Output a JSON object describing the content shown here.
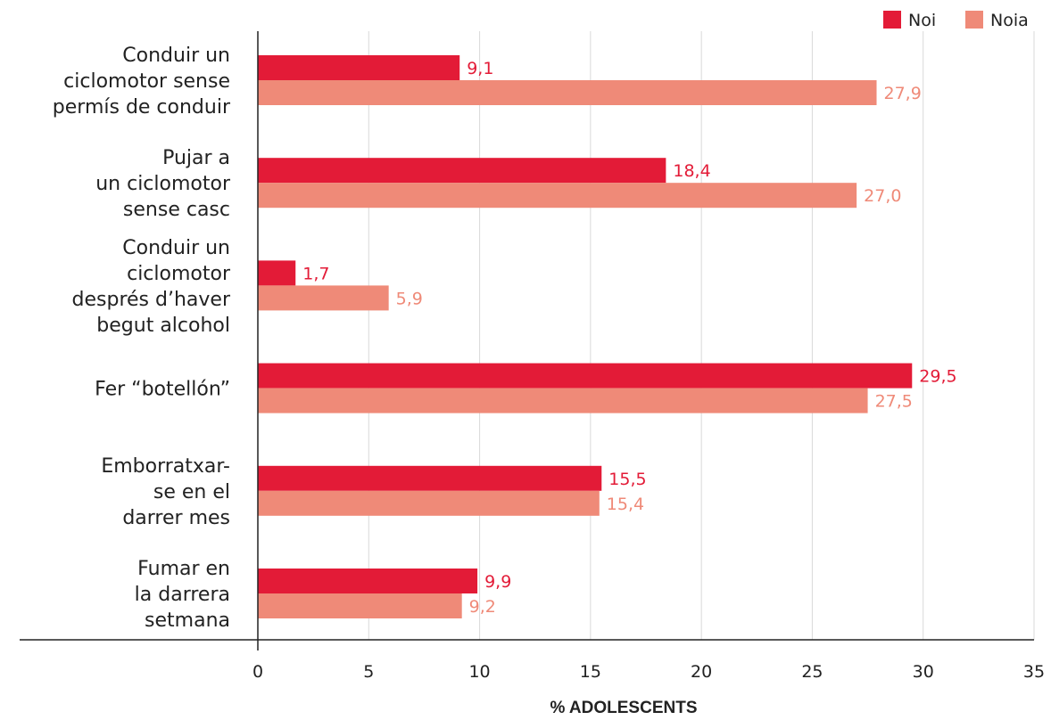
{
  "chart_data": {
    "type": "bar",
    "orientation": "horizontal",
    "categories": [
      [
        "Conduir un",
        "ciclomotor sense",
        "permís de conduir"
      ],
      [
        "Pujar a",
        "un ciclomotor",
        "sense casc"
      ],
      [
        "Conduir un",
        "ciclomotor",
        "després d’haver",
        "begut alcohol"
      ],
      [
        "Fer “botellón”"
      ],
      [
        "Emborratxar-",
        "se en el",
        "darrer mes"
      ],
      [
        "Fumar en",
        "la darrera",
        "setmana"
      ]
    ],
    "series": [
      {
        "name": "Noi",
        "color": "#e31b37",
        "values": [
          9.1,
          18.4,
          1.7,
          29.5,
          15.5,
          9.9
        ],
        "labels": [
          "9,1",
          "18,4",
          "1,7",
          "29,5",
          "15,5",
          "9,9"
        ]
      },
      {
        "name": "Noia",
        "color": "#ef8a78",
        "values": [
          27.9,
          27.0,
          5.9,
          27.5,
          15.4,
          9.2
        ],
        "labels": [
          "27,9",
          "27,0",
          "5,9",
          "27,5",
          "15,4",
          "9,2"
        ]
      }
    ],
    "xlabel": "% ADOLESCENTS",
    "xlim": [
      0,
      35
    ],
    "xticks": [
      0,
      5,
      10,
      15,
      20,
      25,
      30,
      35
    ],
    "grid": true,
    "legend": "top-right"
  }
}
